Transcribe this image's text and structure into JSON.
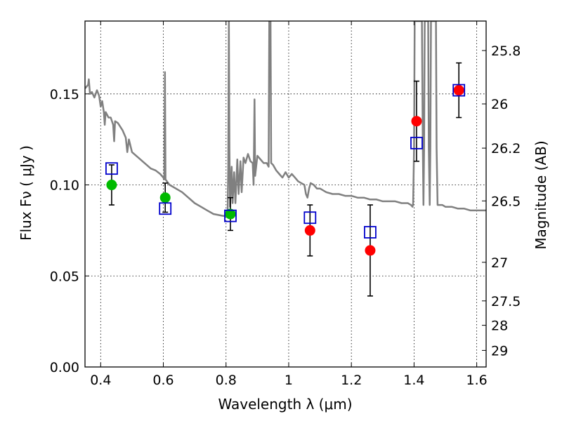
{
  "chart_data": {
    "type": "scatter",
    "xlabel": "Wavelength  λ (μm)",
    "ylabel": "Flux  Fν  ( μJy )",
    "y2label": "Magnitude (AB)",
    "xlim": [
      0.35,
      1.63
    ],
    "ylim": [
      0.0,
      0.19
    ],
    "grid": true,
    "x_ticks": [
      0.4,
      0.6,
      0.8,
      1.0,
      1.2,
      1.4,
      1.6
    ],
    "x_tick_labels": [
      "0.4",
      "0.6",
      "0.8",
      "1",
      "1.2",
      "1.4",
      "1.6"
    ],
    "y_ticks": [
      0.0,
      0.05,
      0.1,
      0.15
    ],
    "y_tick_labels": [
      "0.00",
      "0.05",
      "0.10",
      "0.15"
    ],
    "y2_ticks": [
      {
        "label": "25.8",
        "flux": 0.1738
      },
      {
        "label": "26",
        "flux": 0.1445
      },
      {
        "label": "26.2",
        "flux": 0.1202
      },
      {
        "label": "26.5",
        "flux": 0.0912
      },
      {
        "label": "27",
        "flux": 0.0575
      },
      {
        "label": "27.5",
        "flux": 0.0363
      },
      {
        "label": "28",
        "flux": 0.0229
      },
      {
        "label": "29",
        "flux": 0.0091
      }
    ],
    "observed": [
      {
        "x": 0.435,
        "y": 0.1,
        "err": 0.011,
        "color": "#00bb00"
      },
      {
        "x": 0.606,
        "y": 0.093,
        "err": 0.008,
        "color": "#00bb00"
      },
      {
        "x": 0.814,
        "y": 0.084,
        "err": 0.009,
        "color": "#00bb00"
      },
      {
        "x": 1.068,
        "y": 0.075,
        "err": 0.014,
        "color": "#ff0000"
      },
      {
        "x": 1.26,
        "y": 0.064,
        "err": 0.025,
        "color": "#ff0000"
      },
      {
        "x": 1.408,
        "y": 0.135,
        "err": 0.022,
        "color": "#ff0000"
      },
      {
        "x": 1.543,
        "y": 0.152,
        "err": 0.015,
        "color": "#ff0000"
      }
    ],
    "model_points": [
      {
        "x": 0.435,
        "y": 0.109
      },
      {
        "x": 0.606,
        "y": 0.087
      },
      {
        "x": 0.814,
        "y": 0.083
      },
      {
        "x": 1.068,
        "y": 0.082
      },
      {
        "x": 1.26,
        "y": 0.074
      },
      {
        "x": 1.408,
        "y": 0.123
      },
      {
        "x": 1.543,
        "y": 0.152
      }
    ],
    "model_spectrum": {
      "color": "#808080",
      "points": [
        [
          0.35,
          0.153
        ],
        [
          0.36,
          0.155
        ],
        [
          0.362,
          0.158
        ],
        [
          0.366,
          0.15
        ],
        [
          0.372,
          0.151
        ],
        [
          0.38,
          0.148
        ],
        [
          0.388,
          0.152
        ],
        [
          0.395,
          0.149
        ],
        [
          0.4,
          0.143
        ],
        [
          0.405,
          0.146
        ],
        [
          0.41,
          0.14
        ],
        [
          0.413,
          0.133
        ],
        [
          0.416,
          0.14
        ],
        [
          0.425,
          0.137
        ],
        [
          0.432,
          0.137
        ],
        [
          0.44,
          0.133
        ],
        [
          0.443,
          0.124
        ],
        [
          0.446,
          0.135
        ],
        [
          0.455,
          0.134
        ],
        [
          0.47,
          0.13
        ],
        [
          0.48,
          0.126
        ],
        [
          0.485,
          0.118
        ],
        [
          0.49,
          0.125
        ],
        [
          0.5,
          0.118
        ],
        [
          0.52,
          0.115
        ],
        [
          0.54,
          0.112
        ],
        [
          0.56,
          0.109
        ],
        [
          0.575,
          0.108
        ],
        [
          0.59,
          0.106
        ],
        [
          0.6,
          0.104
        ],
        [
          0.603,
          0.103
        ],
        [
          0.605,
          0.162
        ],
        [
          0.607,
          0.103
        ],
        [
          0.62,
          0.1
        ],
        [
          0.64,
          0.098
        ],
        [
          0.66,
          0.096
        ],
        [
          0.68,
          0.093
        ],
        [
          0.7,
          0.09
        ],
        [
          0.72,
          0.088
        ],
        [
          0.74,
          0.086
        ],
        [
          0.76,
          0.084
        ],
        [
          0.79,
          0.083
        ],
        [
          0.8,
          0.083
        ],
        [
          0.805,
          0.085
        ],
        [
          0.807,
          0.11
        ],
        [
          0.809,
          0.19
        ],
        [
          0.811,
          0.12
        ],
        [
          0.813,
          0.088
        ],
        [
          0.818,
          0.11
        ],
        [
          0.821,
          0.09
        ],
        [
          0.826,
          0.107
        ],
        [
          0.83,
          0.09
        ],
        [
          0.836,
          0.114
        ],
        [
          0.84,
          0.095
        ],
        [
          0.846,
          0.113
        ],
        [
          0.85,
          0.096
        ],
        [
          0.856,
          0.115
        ],
        [
          0.862,
          0.112
        ],
        [
          0.87,
          0.117
        ],
        [
          0.878,
          0.113
        ],
        [
          0.885,
          0.112
        ],
        [
          0.888,
          0.1
        ],
        [
          0.891,
          0.147
        ],
        [
          0.893,
          0.105
        ],
        [
          0.9,
          0.116
        ],
        [
          0.91,
          0.114
        ],
        [
          0.92,
          0.112
        ],
        [
          0.93,
          0.112
        ],
        [
          0.936,
          0.11
        ],
        [
          0.938,
          0.19
        ],
        [
          0.942,
          0.19
        ],
        [
          0.944,
          0.112
        ],
        [
          0.95,
          0.111
        ],
        [
          0.96,
          0.108
        ],
        [
          0.97,
          0.106
        ],
        [
          0.98,
          0.104
        ],
        [
          0.99,
          0.107
        ],
        [
          1.0,
          0.104
        ],
        [
          1.01,
          0.106
        ],
        [
          1.02,
          0.104
        ],
        [
          1.03,
          0.102
        ],
        [
          1.04,
          0.101
        ],
        [
          1.05,
          0.1
        ],
        [
          1.055,
          0.095
        ],
        [
          1.06,
          0.093
        ],
        [
          1.065,
          0.098
        ],
        [
          1.07,
          0.101
        ],
        [
          1.08,
          0.1
        ],
        [
          1.09,
          0.098
        ],
        [
          1.1,
          0.098
        ],
        [
          1.11,
          0.097
        ],
        [
          1.12,
          0.096
        ],
        [
          1.14,
          0.095
        ],
        [
          1.16,
          0.095
        ],
        [
          1.18,
          0.094
        ],
        [
          1.2,
          0.094
        ],
        [
          1.22,
          0.093
        ],
        [
          1.24,
          0.093
        ],
        [
          1.26,
          0.092
        ],
        [
          1.28,
          0.092
        ],
        [
          1.3,
          0.091
        ],
        [
          1.32,
          0.091
        ],
        [
          1.34,
          0.091
        ],
        [
          1.36,
          0.09
        ],
        [
          1.38,
          0.09
        ],
        [
          1.39,
          0.089
        ],
        [
          1.395,
          0.088
        ],
        [
          1.397,
          0.09
        ],
        [
          1.4,
          0.12
        ],
        [
          1.402,
          0.19
        ],
        [
          1.425,
          0.19
        ],
        [
          1.428,
          0.12
        ],
        [
          1.43,
          0.089
        ],
        [
          1.432,
          0.12
        ],
        [
          1.434,
          0.19
        ],
        [
          1.445,
          0.19
        ],
        [
          1.447,
          0.12
        ],
        [
          1.45,
          0.089
        ],
        [
          1.452,
          0.12
        ],
        [
          1.454,
          0.19
        ],
        [
          1.47,
          0.19
        ],
        [
          1.472,
          0.12
        ],
        [
          1.475,
          0.089
        ],
        [
          1.49,
          0.089
        ],
        [
          1.5,
          0.088
        ],
        [
          1.52,
          0.088
        ],
        [
          1.54,
          0.087
        ],
        [
          1.56,
          0.087
        ],
        [
          1.58,
          0.086
        ],
        [
          1.6,
          0.086
        ],
        [
          1.63,
          0.086
        ]
      ]
    }
  }
}
